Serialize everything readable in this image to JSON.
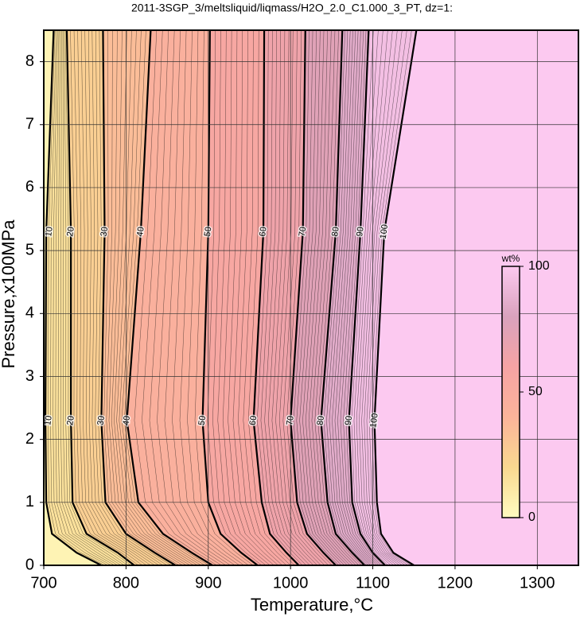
{
  "chart_data": {
    "type": "contour",
    "title": "2011-3SGP_3/meltsliquid/liqmass/H2O_2.0_C1.000_3_PT, dz=1:",
    "x_label": "Temperature,°C",
    "y_label": "Pressure,x100MPa",
    "xlim": [
      700,
      1350
    ],
    "ylim": [
      0,
      8.5
    ],
    "xticks": [
      700,
      800,
      900,
      1000,
      1100,
      1200,
      1300
    ],
    "yticks": [
      0,
      1,
      2,
      3,
      4,
      5,
      6,
      7,
      8
    ],
    "grid": true,
    "colormap": [
      {
        "value": 0,
        "color": "#fffcc0"
      },
      {
        "value": 20,
        "color": "#f9d890"
      },
      {
        "value": 40,
        "color": "#fbb49a"
      },
      {
        "value": 60,
        "color": "#f6a3a4"
      },
      {
        "value": 80,
        "color": "#d9a2bd"
      },
      {
        "value": 100,
        "color": "#fcc9f0"
      }
    ],
    "colorbar": {
      "label": "wt%",
      "ticks": [
        0,
        50,
        100
      ]
    },
    "contours": [
      {
        "level": 10,
        "T": [
          712,
          703,
          702,
          703,
          710,
          740,
          770
        ],
        "P": [
          8.5,
          5.3,
          2.3,
          1,
          0.5,
          0.2,
          0
        ]
      },
      {
        "level": 20,
        "T": [
          728,
          733,
          733,
          735,
          752,
          790,
          810
        ],
        "P": [
          8.5,
          5.3,
          2.3,
          1,
          0.5,
          0.2,
          0
        ]
      },
      {
        "level": 30,
        "T": [
          772,
          774,
          770,
          775,
          800,
          835,
          860
        ],
        "P": [
          8.5,
          5.3,
          2.3,
          1,
          0.5,
          0.2,
          0
        ]
      },
      {
        "level": 40,
        "T": [
          830,
          818,
          801,
          815,
          845,
          880,
          905
        ],
        "P": [
          8.5,
          5.3,
          2.3,
          1,
          0.5,
          0.2,
          0
        ]
      },
      {
        "level": 50,
        "T": [
          902,
          900,
          893,
          900,
          915,
          940,
          960
        ],
        "P": [
          8.5,
          5.3,
          2.3,
          1,
          0.5,
          0.2,
          0
        ]
      },
      {
        "level": 60,
        "T": [
          968,
          967,
          955,
          965,
          975,
          995,
          1010
        ],
        "P": [
          8.5,
          5.3,
          2.3,
          1,
          0.5,
          0.2,
          0
        ]
      },
      {
        "level": 70,
        "T": [
          1018,
          1015,
          1000,
          1008,
          1020,
          1040,
          1055
        ],
        "P": [
          8.5,
          5.3,
          2.3,
          1,
          0.5,
          0.2,
          0
        ]
      },
      {
        "level": 80,
        "T": [
          1063,
          1055,
          1037,
          1045,
          1055,
          1075,
          1090
        ],
        "P": [
          8.5,
          5.3,
          2.3,
          1,
          0.5,
          0.2,
          0
        ]
      },
      {
        "level": 90,
        "T": [
          1095,
          1085,
          1071,
          1075,
          1085,
          1100,
          1115
        ],
        "P": [
          8.5,
          5.3,
          2.3,
          1,
          0.5,
          0.2,
          0
        ]
      },
      {
        "level": 100,
        "T": [
          1153,
          1114,
          1102,
          1105,
          1110,
          1125,
          1150
        ],
        "P": [
          8.5,
          5.3,
          2.3,
          1,
          0.5,
          0.2,
          0
        ]
      }
    ]
  }
}
